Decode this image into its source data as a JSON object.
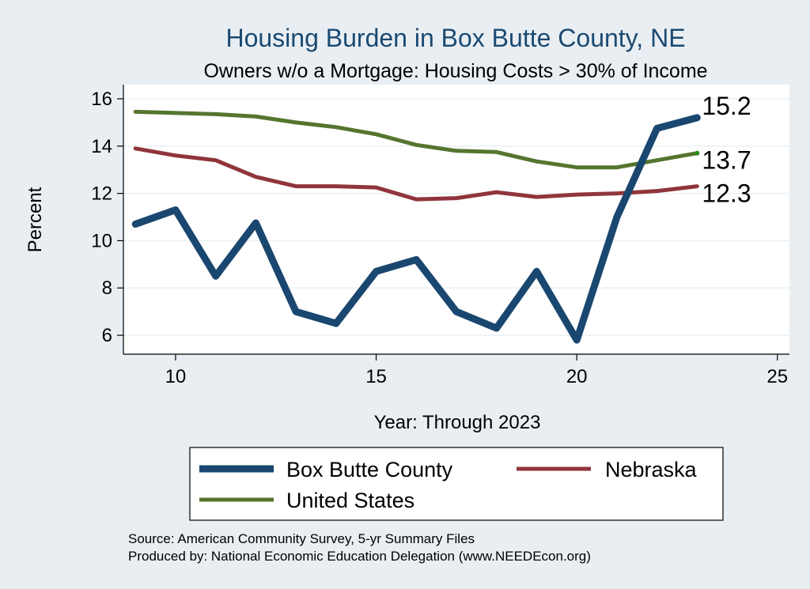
{
  "chart_data": {
    "type": "line",
    "title": "Housing Burden in Box Butte County, NE",
    "subtitle": "Owners w/o a Mortgage: Housing Costs > 30% of Income",
    "xlabel": "Year: Through 2023",
    "ylabel": "Percent",
    "xlim": [
      8.7,
      25.3
    ],
    "ylim": [
      5.2,
      16.6
    ],
    "xticks": [
      10,
      15,
      20,
      25
    ],
    "yticks": [
      6,
      8,
      10,
      12,
      14,
      16
    ],
    "grid": true,
    "x": [
      9,
      10,
      11,
      12,
      13,
      14,
      15,
      16,
      17,
      18,
      19,
      20,
      21,
      22,
      23
    ],
    "series": [
      {
        "name": "Box Butte County",
        "color": "#1a476f",
        "values": [
          10.7,
          11.3,
          8.5,
          10.75,
          7.0,
          6.5,
          8.7,
          9.2,
          7.0,
          6.3,
          8.7,
          5.8,
          11.0,
          14.75,
          15.2
        ],
        "end_label": "15.2"
      },
      {
        "name": "Nebraska",
        "color": "#90353b",
        "values": [
          13.9,
          13.6,
          13.4,
          12.7,
          12.3,
          12.3,
          12.25,
          11.75,
          11.8,
          12.05,
          11.85,
          11.95,
          12.0,
          12.1,
          12.3
        ],
        "end_label": "12.3"
      },
      {
        "name": "United States",
        "color": "#55752f",
        "values": [
          15.45,
          15.4,
          15.35,
          15.25,
          15.0,
          14.8,
          14.5,
          14.05,
          13.8,
          13.75,
          13.35,
          13.1,
          13.1,
          13.4,
          13.7
        ],
        "end_label": "13.7"
      }
    ],
    "legend": {
      "placement": "bottom",
      "entries": [
        "Box Butte County",
        "Nebraska",
        "United States"
      ]
    },
    "source_line1": "Source: American Community Survey, 5-yr Summary Files",
    "source_line2": "Produced by: National Economic Education Delegation (www.NEEDEcon.org)"
  }
}
